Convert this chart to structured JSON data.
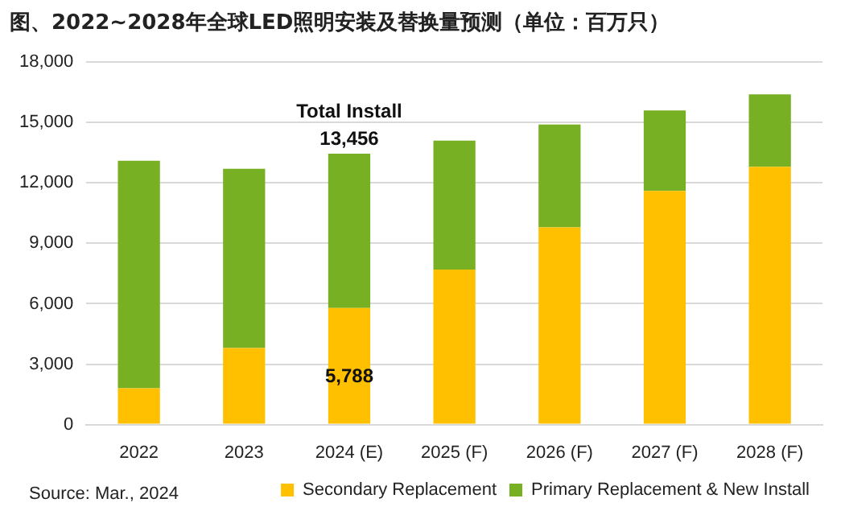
{
  "chart_data": {
    "type": "bar",
    "title": "图、2022~2028年全球LED照明安装及替换量预测（单位：百万只）",
    "categories": [
      "2022",
      "2023",
      "2024 (E)",
      "2025 (F)",
      "2026 (F)",
      "2027 (F)",
      "2028 (F)"
    ],
    "series": [
      {
        "name": "Secondary Replacement",
        "color": "#ffc000",
        "values": [
          1800,
          3800,
          5788,
          7700,
          9800,
          11600,
          12800
        ],
        "value_labels": [
          null,
          null,
          "5,788",
          null,
          null,
          null,
          null
        ]
      },
      {
        "name": "Primary Replacement & New Install",
        "color": "#77b022",
        "values": [
          11300,
          8900,
          7668,
          6400,
          5100,
          4000,
          3600
        ]
      }
    ],
    "stacked": true,
    "totals": [
      null,
      null,
      "13,456",
      null,
      null,
      null,
      null
    ],
    "ylim": [
      0,
      18000
    ],
    "yticks": [
      {
        "value": 0,
        "label": "0"
      },
      {
        "value": 3000,
        "label": "3,000"
      },
      {
        "value": 6000,
        "label": "6,000"
      },
      {
        "value": 9000,
        "label": "9,000"
      },
      {
        "value": 12000,
        "label": "12,000"
      },
      {
        "value": 15000,
        "label": "15,000"
      },
      {
        "value": 18000,
        "label": "18,000"
      }
    ],
    "grid": "y",
    "legend": "bottom",
    "annotations": [
      {
        "text": "Total Install",
        "x": "2024 (E)",
        "y": 13456
      },
      "Source: Mar., 2024"
    ]
  }
}
